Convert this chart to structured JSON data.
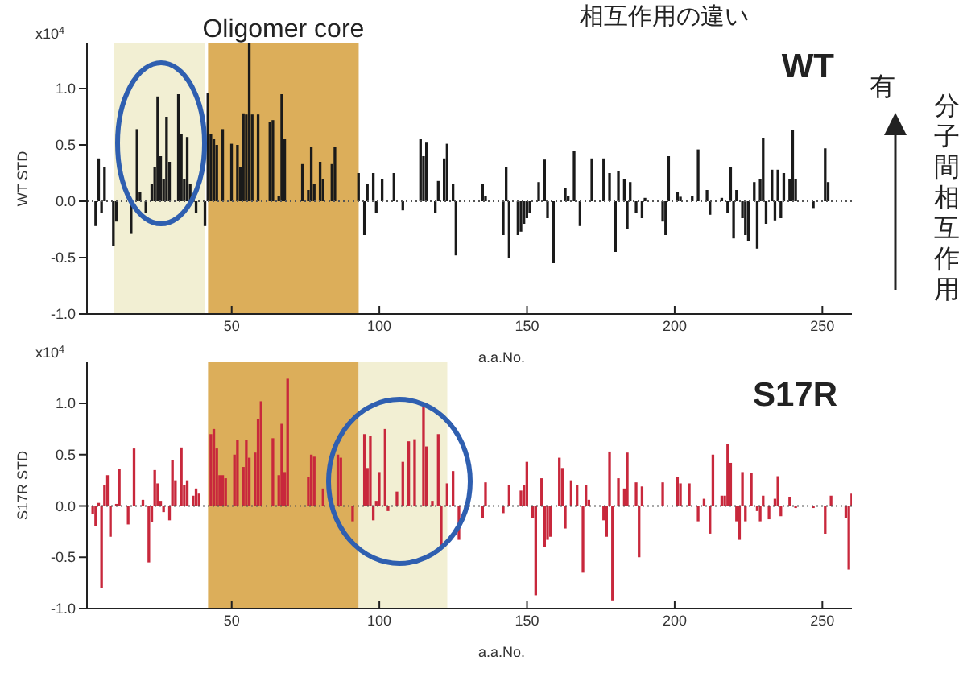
{
  "chart_data": [
    {
      "type": "bar",
      "title": "相互作用の違い",
      "xlabel": "a.a.No.",
      "ylabel": "WT STD",
      "annotations": [
        "WT",
        "有",
        "分子間相互作用",
        "x10$^{4}$"
      ],
      "xlim": [
        1,
        260
      ],
      "xticks": [
        50,
        100,
        150,
        200,
        250
      ],
      "ylim": [
        -1.0,
        1.4
      ],
      "yticks": [
        {
          "value": 1.0,
          "label": "1.0"
        },
        {
          "value": 0.5,
          "label": "0.5"
        },
        {
          "value": 0,
          "label": "0.0"
        },
        {
          "value": -0.5,
          "label": "-0.5"
        },
        {
          "value": -1.0,
          "label": "-1.0"
        }
      ],
      "bands": [
        {
          "axis": "x",
          "from": 10,
          "to": 41,
          "color": "#f2efd3"
        },
        {
          "axis": "x",
          "from": 42,
          "to": 93,
          "color": "#dcae5a",
          "label": "Oligomer core"
        }
      ],
      "ref_lines": [
        {
          "axis": "y",
          "value": 0,
          "line_style": "dotted",
          "color": "#555555"
        }
      ],
      "series": [
        {
          "color": "#1a1a1a",
          "x": [
            4,
            5,
            6,
            7,
            10,
            11,
            16,
            18,
            19,
            21,
            23,
            24,
            25,
            26,
            27,
            28,
            29,
            32,
            33,
            34,
            35,
            36,
            38,
            41,
            42,
            43,
            44,
            45,
            47,
            50,
            52,
            53,
            54,
            55,
            56,
            57,
            59,
            63,
            64,
            66,
            67,
            68,
            74,
            76,
            77,
            78,
            80,
            81,
            84,
            85,
            93,
            95,
            96,
            98,
            99,
            101,
            105,
            108,
            114,
            115,
            116,
            119,
            120,
            122,
            123,
            125,
            126,
            135,
            136,
            142,
            143,
            144,
            147,
            148,
            149,
            150,
            151,
            154,
            156,
            157,
            159,
            163,
            164,
            166,
            168,
            172,
            176,
            178,
            180,
            181,
            183,
            184,
            185,
            187,
            189,
            190,
            196,
            197,
            198,
            201,
            202,
            206,
            208,
            211,
            212,
            216,
            218,
            219,
            220,
            221,
            223,
            224,
            225,
            227,
            228,
            229,
            230,
            231,
            233,
            234,
            235,
            236,
            237,
            239,
            240,
            241,
            247,
            251,
            252
          ],
          "values": [
            -0.22,
            0.38,
            -0.1,
            0.3,
            -0.4,
            -0.18,
            -0.29,
            0.64,
            0.08,
            -0.1,
            0.15,
            0.3,
            0.93,
            0.4,
            0.2,
            0.75,
            0.35,
            0.95,
            0.6,
            0.2,
            0.57,
            0.15,
            -0.1,
            -0.22,
            0.96,
            0.6,
            0.55,
            0.5,
            0.64,
            0.51,
            0.5,
            0.3,
            0.78,
            0.77,
            1.4,
            0.77,
            0.77,
            0.7,
            0.72,
            0.05,
            0.95,
            0.55,
            0.33,
            0.1,
            0.48,
            0.15,
            0.35,
            0.2,
            0.33,
            0.48,
            0.25,
            -0.3,
            0.15,
            0.25,
            -0.1,
            0.2,
            0.25,
            -0.08,
            0.55,
            0.4,
            0.52,
            -0.1,
            0.18,
            0.38,
            0.51,
            0.15,
            -0.48,
            0.15,
            0.05,
            -0.3,
            0.3,
            -0.5,
            -0.3,
            -0.27,
            -0.2,
            -0.15,
            -0.1,
            0.17,
            0.37,
            -0.15,
            -0.55,
            0.12,
            0.05,
            0.45,
            -0.22,
            0.38,
            0.38,
            0.25,
            -0.45,
            0.27,
            0.2,
            -0.25,
            0.17,
            -0.1,
            -0.15,
            0.03,
            -0.18,
            -0.3,
            0.4,
            0.08,
            0.04,
            0.05,
            0.46,
            0.1,
            -0.12,
            0.03,
            -0.1,
            0.3,
            -0.33,
            0.1,
            -0.15,
            -0.3,
            -0.35,
            0.17,
            -0.42,
            0.2,
            0.56,
            -0.2,
            0.28,
            -0.17,
            0.28,
            -0.15,
            0.25,
            0.2,
            0.63,
            0.2,
            -0.06,
            0.47,
            0.17
          ]
        }
      ]
    },
    {
      "type": "bar",
      "xlabel": "a.a.No.",
      "ylabel": "S17R STD",
      "annotations": [
        "S17R",
        "x10$^{4}$"
      ],
      "xlim": [
        1,
        260
      ],
      "xticks": [
        50,
        100,
        150,
        200,
        250
      ],
      "ylim": [
        -1.0,
        1.4
      ],
      "yticks": [
        {
          "value": 1.0,
          "label": "1.0"
        },
        {
          "value": 0.5,
          "label": "0.5"
        },
        {
          "value": 0,
          "label": "0.0"
        },
        {
          "value": -0.5,
          "label": "-0.5"
        },
        {
          "value": -1.0,
          "label": "-1.0"
        }
      ],
      "bands": [
        {
          "axis": "x",
          "from": 42,
          "to": 93,
          "color": "#dcae5a"
        },
        {
          "axis": "x",
          "from": 93,
          "to": 123,
          "color": "#f2efd3"
        }
      ],
      "ref_lines": [
        {
          "axis": "y",
          "value": 0,
          "line_style": "dotted",
          "color": "#555555"
        }
      ],
      "series": [
        {
          "color": "#c8283c",
          "x": [
            3,
            4,
            5,
            6,
            7,
            8,
            9,
            11,
            12,
            15,
            17,
            20,
            22,
            23,
            24,
            25,
            26,
            27,
            29,
            30,
            31,
            33,
            34,
            35,
            37,
            38,
            39,
            43,
            44,
            45,
            46,
            47,
            48,
            51,
            52,
            54,
            55,
            56,
            58,
            59,
            60,
            64,
            66,
            67,
            68,
            69,
            76,
            77,
            78,
            81,
            86,
            87,
            91,
            95,
            96,
            97,
            98,
            99,
            100,
            102,
            103,
            106,
            108,
            110,
            112,
            115,
            116,
            118,
            120,
            121,
            123,
            125,
            127,
            135,
            136,
            142,
            144,
            148,
            149,
            150,
            152,
            153,
            155,
            156,
            157,
            158,
            161,
            162,
            163,
            165,
            167,
            169,
            170,
            171,
            176,
            177,
            178,
            179,
            181,
            183,
            184,
            187,
            188,
            189,
            196,
            201,
            202,
            205,
            208,
            210,
            212,
            213,
            216,
            217,
            218,
            219,
            221,
            222,
            223,
            224,
            226,
            228,
            229,
            230,
            232,
            234,
            235,
            236,
            239,
            241,
            247,
            251,
            253,
            258,
            259,
            260
          ],
          "values": [
            -0.08,
            -0.2,
            0.03,
            -0.8,
            0.2,
            0.3,
            -0.3,
            0.02,
            0.36,
            -0.18,
            0.56,
            0.06,
            -0.55,
            -0.16,
            0.35,
            0.22,
            0.05,
            -0.06,
            -0.14,
            0.45,
            0.25,
            0.57,
            0.2,
            0.25,
            0.1,
            0.17,
            0.12,
            0.7,
            0.75,
            0.56,
            0.3,
            0.3,
            0.27,
            0.5,
            0.64,
            0.38,
            0.64,
            0.47,
            0.52,
            0.85,
            1.02,
            0.66,
            0.3,
            0.8,
            0.33,
            1.24,
            0.28,
            0.5,
            0.48,
            0.17,
            0.5,
            0.47,
            -0.15,
            0.7,
            0.37,
            0.68,
            -0.14,
            0.05,
            0.33,
            0.75,
            -0.05,
            0.14,
            0.43,
            0.63,
            0.65,
            0.97,
            0.58,
            0.05,
            0.7,
            -0.38,
            0.22,
            0.34,
            -0.33,
            -0.12,
            0.23,
            -0.07,
            0.2,
            0.15,
            0.2,
            0.43,
            -0.12,
            -0.87,
            0.27,
            -0.4,
            -0.33,
            -0.3,
            0.47,
            0.37,
            -0.22,
            0.25,
            0.2,
            -0.65,
            0.2,
            0.06,
            -0.14,
            -0.3,
            0.53,
            -0.92,
            0.27,
            0.17,
            0.52,
            0.23,
            -0.5,
            0.19,
            0.23,
            0.28,
            0.22,
            0.22,
            -0.15,
            0.07,
            -0.27,
            0.5,
            0.1,
            0.1,
            0.6,
            0.42,
            -0.15,
            -0.33,
            0.33,
            -0.15,
            0.32,
            -0.05,
            -0.15,
            0.1,
            -0.13,
            0.07,
            0.29,
            -0.1,
            0.09,
            -0.02,
            -0.02,
            -0.27,
            0.1,
            -0.12,
            -0.62,
            0.12
          ]
        }
      ]
    }
  ]
}
